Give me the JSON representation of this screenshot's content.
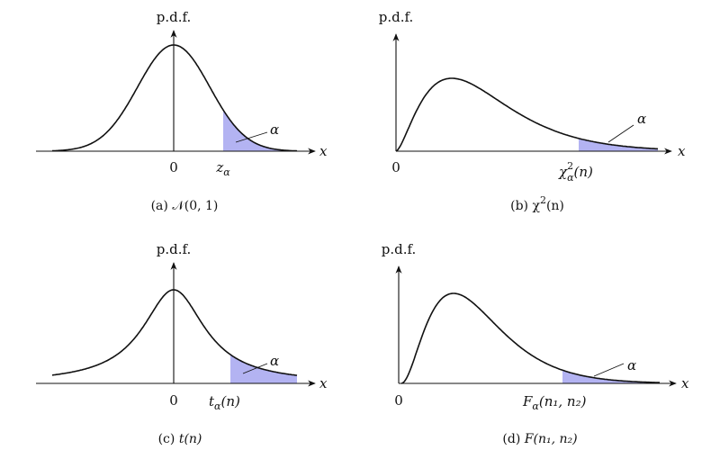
{
  "panels": [
    {
      "id": "a",
      "distribution": "normal",
      "ylabel": "p.d.f.",
      "xlabel": "x",
      "origin_label": "0",
      "alpha_label": "α",
      "critical_label": {
        "base": "z",
        "sub": "α",
        "suffix": ""
      },
      "caption": {
        "prefix": "(a) ",
        "base": "𝒩",
        "suffix": "(0, 1)"
      }
    },
    {
      "id": "b",
      "distribution": "chi-square",
      "ylabel": "p.d.f.",
      "xlabel": "x",
      "origin_label": "0",
      "alpha_label": "α",
      "critical_label": {
        "base": "χ",
        "sup": "2",
        "sub": "α",
        "suffix": "(n)"
      },
      "caption": {
        "prefix": "(b) ",
        "base": "χ",
        "sup": "2",
        "suffix": "(n)"
      }
    },
    {
      "id": "c",
      "distribution": "t",
      "ylabel": "p.d.f.",
      "xlabel": "x",
      "origin_label": "0",
      "alpha_label": "α",
      "critical_label": {
        "base": "t",
        "sub": "α",
        "suffix": "(n)"
      },
      "caption": {
        "prefix": "(c) ",
        "base": "t",
        "suffix": "(n)"
      }
    },
    {
      "id": "d",
      "distribution": "F",
      "ylabel": "p.d.f.",
      "xlabel": "x",
      "origin_label": "0",
      "alpha_label": "α",
      "critical_label": {
        "base": "F",
        "sub": "α",
        "suffix": "(n₁, n₂)"
      },
      "caption": {
        "prefix": "(d) ",
        "base": "F",
        "suffix": "(n₁, n₂)"
      }
    }
  ],
  "colors": {
    "shade": "#b3b3f2",
    "stroke": "#111111"
  }
}
